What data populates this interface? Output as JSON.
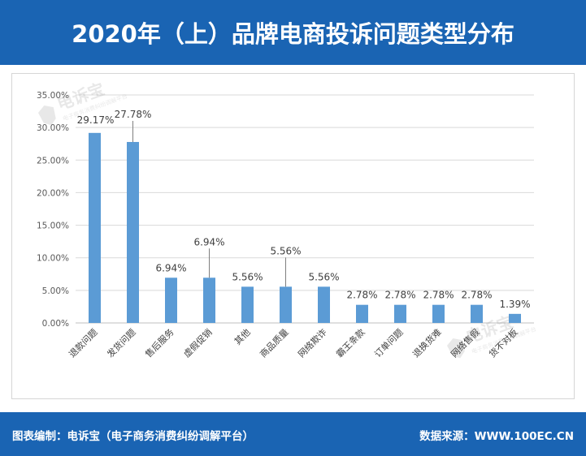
{
  "header": {
    "title": "2020年（上）品牌电商投诉问题类型分布"
  },
  "footer": {
    "credit": "图表编制：电诉宝（电子商务消费纠纷调解平台）",
    "source": "数据来源：WWW.100EC.CN"
  },
  "watermark": {
    "text": "电诉宝",
    "subtext": "电子商务消费纠纷调解平台"
  },
  "colors": {
    "header_bg": "#1a64b3",
    "bar": "#5b9bd5",
    "grid": "#d9d9d9"
  },
  "chart_data": {
    "type": "bar",
    "title": "2020年（上）品牌电商投诉问题类型分布",
    "categories": [
      "退款问题",
      "发货问题",
      "售后服务",
      "虚假促销",
      "其他",
      "商品质量",
      "网络欺诈",
      "霸王条款",
      "订单问题",
      "退换货难",
      "网络售假",
      "货不对板"
    ],
    "values": [
      29.17,
      27.78,
      6.94,
      6.94,
      5.56,
      5.56,
      5.56,
      2.78,
      2.78,
      2.78,
      2.78,
      1.39
    ],
    "labels": [
      "29.17%",
      "27.78%",
      "6.94%",
      "6.94%",
      "5.56%",
      "5.56%",
      "5.56%",
      "2.78%",
      "2.78%",
      "2.78%",
      "2.78%",
      "1.39%"
    ],
    "ylim": [
      0,
      35
    ],
    "yticks": [
      "0.00%",
      "5.00%",
      "10.00%",
      "15.00%",
      "20.00%",
      "25.00%",
      "30.00%",
      "35.00%"
    ],
    "grid": true,
    "xlabel": "",
    "ylabel": ""
  }
}
